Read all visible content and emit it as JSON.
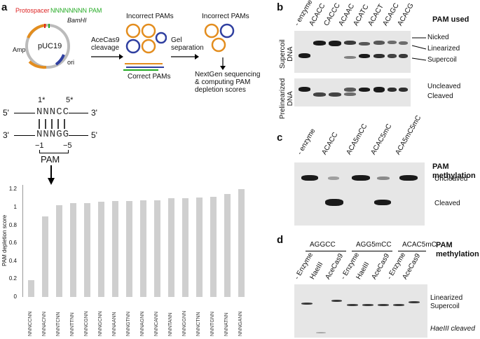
{
  "panel_a": {
    "letter": "a",
    "plasmid": {
      "name": "pUC19",
      "protospacer": "Protospacer",
      "pam_label": "NNNNNNNN PAM",
      "bamhi": "BamHI",
      "amp": "Amp",
      "ori": "ori"
    },
    "step1": "AceCas9\ncleavage",
    "step2": "Gel\nseparation",
    "incorrect_pams_1": "Incorrect PAMs",
    "incorrect_pams_2": "Incorrect PAMs",
    "correct_pams": "Correct PAMs",
    "ngs": "NextGen sequencing\n& computing PAM\ndepletion scores",
    "seq_top_label": "1*",
    "seq_top_label2": "5*",
    "seq_top": "NNNCC",
    "seq_bottom": "NNNGG",
    "prime5_top": "5'",
    "prime3_top": "3'",
    "prime3_bottom": "3'",
    "prime5_bottom": "5'",
    "pos_minus1": "−1",
    "pos_minus5": "−5",
    "pam": "PAM",
    "ylabel": "PAM depletion score"
  },
  "chart_data": {
    "type": "bar",
    "categories": [
      "NNNCCNN",
      "NNNACNN",
      "NNNTCNN",
      "NNNTTNN",
      "NNNCGNN",
      "NNNGCNN",
      "NNNAANN",
      "NNNGTNN",
      "NNNAGNN",
      "NNNCANN",
      "NNNTANN",
      "NNNGGNN",
      "NNNCTNN",
      "NNNTGNN",
      "NNNATNN",
      "NNNGANN"
    ],
    "values": [
      0.19,
      0.9,
      1.02,
      1.05,
      1.05,
      1.06,
      1.07,
      1.07,
      1.08,
      1.08,
      1.1,
      1.1,
      1.11,
      1.12,
      1.15,
      1.2
    ],
    "ylim": [
      0,
      1.25
    ],
    "yticks": [
      "0",
      "0.2",
      "0.4",
      "0.6",
      "0.8",
      "1",
      "1.2"
    ],
    "color": "#cfcfcf"
  },
  "panel_b": {
    "letter": "b",
    "lanes": [
      "- enzyme",
      "ACACC",
      "CACCC",
      "ACAAC",
      "ACATC",
      "ACACT",
      "ACAGC",
      "ACACG"
    ],
    "title": "PAM used",
    "row1_label": "Supercoil\nDNA",
    "row2_label": "Prelinearized\nDNA",
    "nicked": "Nicked",
    "linearized": "Linearized",
    "supercoil": "Supercoil",
    "uncleaved": "Uncleaved",
    "cleaved": "Cleaved"
  },
  "panel_c": {
    "letter": "c",
    "lanes": [
      "- enzyme",
      "ACACC",
      "ACA5mCC",
      "ACAC5mC",
      "ACA5mC5mC"
    ],
    "title": "PAM\nmethylation",
    "uncleaved": "Uncleaved",
    "cleaved": "Cleaved"
  },
  "panel_d": {
    "letter": "d",
    "groups": [
      "AGGCC",
      "AGG5mCC",
      "ACAC5mC"
    ],
    "lanes": [
      "- Enzyme",
      "HaeIII",
      "AceCas9",
      "- Enzyme",
      "HaeIII",
      "AceCas9",
      "- Enzyme",
      "AceCas9"
    ],
    "title": "PAM\nmethylation",
    "linearized": "Linearized",
    "supercoil": "Supercoil",
    "haeiii_cleaved": "HaeIII cleaved"
  }
}
